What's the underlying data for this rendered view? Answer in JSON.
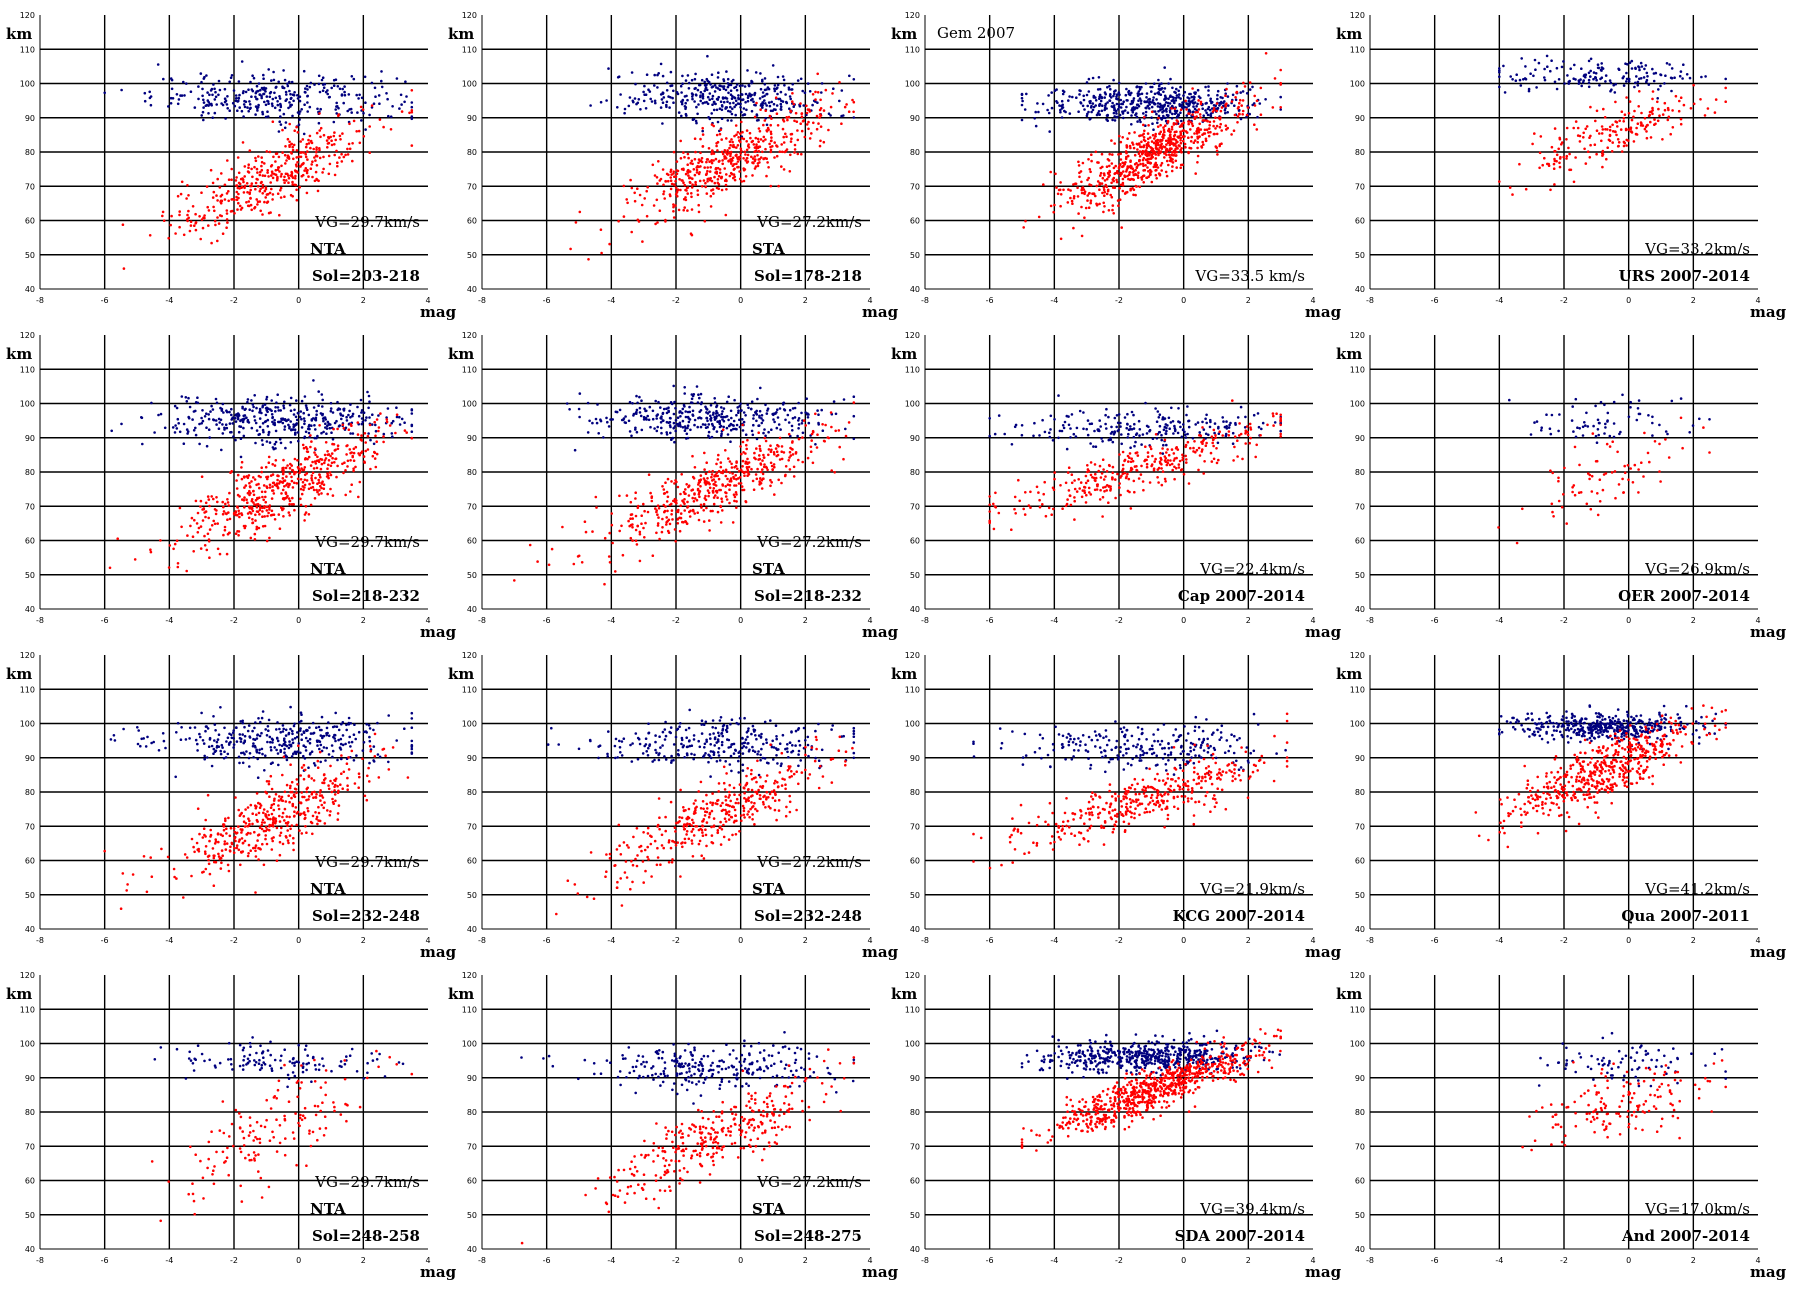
{
  "colors": {
    "upper": "#00007f",
    "lower": "#ff0000",
    "grid": "#000000"
  },
  "chart_data": [
    {
      "type": "scatter",
      "title": "",
      "ylabel": "km",
      "xlabel": "mag",
      "xlim": [
        -8,
        4
      ],
      "ylim": [
        40,
        120
      ],
      "annotations": [
        "VG=29.7km/s",
        "NTA",
        "Sol=203-218"
      ],
      "series": [
        {
          "name": "upper",
          "center": [
            -0.7,
            96
          ],
          "spread": [
            1.9,
            3.5
          ],
          "n": 330,
          "slope": 0,
          "xr": [
            -6,
            3.5
          ]
        },
        {
          "name": "lower",
          "center": [
            -0.8,
            73
          ],
          "spread": [
            1.6,
            5
          ],
          "n": 420,
          "slope": 4.5,
          "xr": [
            -6,
            3.5
          ]
        }
      ]
    },
    {
      "type": "scatter",
      "title": "",
      "ylabel": "km",
      "xlabel": "mag",
      "xlim": [
        -8,
        4
      ],
      "ylim": [
        40,
        120
      ],
      "annotations": [
        "VG=27.2km/s",
        "STA",
        "Sol=178-218"
      ],
      "series": [
        {
          "name": "upper",
          "center": [
            -0.4,
            96
          ],
          "spread": [
            1.8,
            3.5
          ],
          "n": 380,
          "slope": 0,
          "xr": [
            -6,
            3.5
          ]
        },
        {
          "name": "lower",
          "center": [
            -0.3,
            78
          ],
          "spread": [
            1.6,
            5
          ],
          "n": 520,
          "slope": 4.5,
          "xr": [
            -6,
            3.5
          ]
        }
      ]
    },
    {
      "type": "scatter",
      "title": "Gem 2007",
      "ylabel": "km",
      "xlabel": "mag",
      "xlim": [
        -8,
        4
      ],
      "ylim": [
        40,
        120
      ],
      "annotations": [
        "VG=33.5 km/s"
      ],
      "series": [
        {
          "name": "upper",
          "center": [
            -0.9,
            94
          ],
          "spread": [
            1.6,
            3
          ],
          "n": 520,
          "slope": 0,
          "xr": [
            -5,
            3
          ]
        },
        {
          "name": "lower",
          "center": [
            -0.9,
            80
          ],
          "spread": [
            1.4,
            4.5
          ],
          "n": 700,
          "slope": 5,
          "xr": [
            -5,
            3
          ]
        }
      ]
    },
    {
      "type": "scatter",
      "title": "",
      "ylabel": "km",
      "xlabel": "mag",
      "xlim": [
        -8,
        4
      ],
      "ylim": [
        40,
        120
      ],
      "annotations": [
        "VG=33.2km/s",
        "URS 2007-2014"
      ],
      "series": [
        {
          "name": "upper",
          "center": [
            -0.8,
            102
          ],
          "spread": [
            1.6,
            2.5
          ],
          "n": 160,
          "slope": 0,
          "xr": [
            -4,
            3
          ]
        },
        {
          "name": "lower",
          "center": [
            -0.5,
            86
          ],
          "spread": [
            1.4,
            4
          ],
          "n": 200,
          "slope": 3.5,
          "xr": [
            -4,
            3
          ]
        }
      ]
    },
    {
      "type": "scatter",
      "title": "",
      "ylabel": "km",
      "xlabel": "mag",
      "xlim": [
        -8,
        4
      ],
      "ylim": [
        40,
        120
      ],
      "annotations": [
        "VG=29.7km/s",
        "NTA",
        "Sol=218-232"
      ],
      "series": [
        {
          "name": "upper",
          "center": [
            -0.5,
            95
          ],
          "spread": [
            1.8,
            3.5
          ],
          "n": 400,
          "slope": 0,
          "xr": [
            -6,
            3.5
          ]
        },
        {
          "name": "lower",
          "center": [
            -0.6,
            75
          ],
          "spread": [
            1.6,
            5
          ],
          "n": 520,
          "slope": 4.5,
          "xr": [
            -6,
            3.5
          ]
        }
      ]
    },
    {
      "type": "scatter",
      "title": "",
      "ylabel": "km",
      "xlabel": "mag",
      "xlim": [
        -8,
        4
      ],
      "ylim": [
        40,
        120
      ],
      "annotations": [
        "VG=27.2km/s",
        "STA",
        "Sol=218-232"
      ],
      "series": [
        {
          "name": "upper",
          "center": [
            -0.8,
            96
          ],
          "spread": [
            1.8,
            3.2
          ],
          "n": 380,
          "slope": 0,
          "xr": [
            -6.5,
            3.5
          ]
        },
        {
          "name": "lower",
          "center": [
            -0.8,
            76
          ],
          "spread": [
            1.8,
            5
          ],
          "n": 480,
          "slope": 4.5,
          "xr": [
            -7,
            3.5
          ]
        }
      ]
    },
    {
      "type": "scatter",
      "title": "",
      "ylabel": "km",
      "xlabel": "mag",
      "xlim": [
        -8,
        4
      ],
      "ylim": [
        40,
        120
      ],
      "annotations": [
        "VG=22.4km/s",
        "Cap 2007-2014"
      ],
      "series": [
        {
          "name": "upper",
          "center": [
            -1.2,
            93
          ],
          "spread": [
            2,
            2.8
          ],
          "n": 230,
          "slope": 0,
          "xr": [
            -6,
            3
          ]
        },
        {
          "name": "lower",
          "center": [
            -1.3,
            81
          ],
          "spread": [
            2,
            3.5
          ],
          "n": 330,
          "slope": 3,
          "xr": [
            -6,
            3
          ]
        }
      ]
    },
    {
      "type": "scatter",
      "title": "",
      "ylabel": "km",
      "xlabel": "mag",
      "xlim": [
        -8,
        4
      ],
      "ylim": [
        40,
        120
      ],
      "annotations": [
        "VG=26.9km/s",
        "OER 2007-2014"
      ],
      "series": [
        {
          "name": "upper",
          "center": [
            -0.8,
            95
          ],
          "spread": [
            1.6,
            3.5
          ],
          "n": 70,
          "slope": 0,
          "xr": [
            -6.5,
            2.5
          ]
        },
        {
          "name": "lower",
          "center": [
            -0.6,
            79
          ],
          "spread": [
            1.6,
            5
          ],
          "n": 75,
          "slope": 3.5,
          "xr": [
            -6.5,
            2.5
          ]
        }
      ]
    },
    {
      "type": "scatter",
      "title": "",
      "ylabel": "km",
      "xlabel": "mag",
      "xlim": [
        -8,
        4
      ],
      "ylim": [
        40,
        120
      ],
      "annotations": [
        "VG=29.7km/s",
        "NTA",
        "Sol=232-248"
      ],
      "series": [
        {
          "name": "upper",
          "center": [
            -0.7,
            95
          ],
          "spread": [
            1.9,
            3.5
          ],
          "n": 360,
          "slope": 0,
          "xr": [
            -6,
            3.5
          ]
        },
        {
          "name": "lower",
          "center": [
            -0.8,
            73
          ],
          "spread": [
            1.6,
            5
          ],
          "n": 440,
          "slope": 4.5,
          "xr": [
            -6,
            3.5
          ]
        }
      ]
    },
    {
      "type": "scatter",
      "title": "",
      "ylabel": "km",
      "xlabel": "mag",
      "xlim": [
        -8,
        4
      ],
      "ylim": [
        40,
        120
      ],
      "annotations": [
        "VG=27.2km/s",
        "STA",
        "Sol=232-248"
      ],
      "series": [
        {
          "name": "upper",
          "center": [
            -0.6,
            94
          ],
          "spread": [
            1.9,
            3.5
          ],
          "n": 300,
          "slope": 0,
          "xr": [
            -7,
            3.5
          ]
        },
        {
          "name": "lower",
          "center": [
            -0.6,
            74
          ],
          "spread": [
            1.8,
            5
          ],
          "n": 380,
          "slope": 4.5,
          "xr": [
            -7,
            3.5
          ]
        }
      ]
    },
    {
      "type": "scatter",
      "title": "",
      "ylabel": "km",
      "xlabel": "mag",
      "xlim": [
        -8,
        4
      ],
      "ylim": [
        40,
        120
      ],
      "annotations": [
        "VG=21.9km/s",
        "KCG 2007-2014"
      ],
      "series": [
        {
          "name": "upper",
          "center": [
            -1.2,
            93
          ],
          "spread": [
            2,
            3.5
          ],
          "n": 250,
          "slope": 0,
          "xr": [
            -6.5,
            3.2
          ]
        },
        {
          "name": "lower",
          "center": [
            -1.2,
            78
          ],
          "spread": [
            2,
            4
          ],
          "n": 380,
          "slope": 3,
          "xr": [
            -6.5,
            3.2
          ]
        }
      ]
    },
    {
      "type": "scatter",
      "title": "",
      "ylabel": "km",
      "xlabel": "mag",
      "xlim": [
        -8,
        4
      ],
      "ylim": [
        40,
        120
      ],
      "annotations": [
        "VG=41.2km/s",
        "Qua 2007-2011"
      ],
      "series": [
        {
          "name": "upper",
          "center": [
            -0.7,
            99
          ],
          "spread": [
            1.4,
            2
          ],
          "n": 430,
          "slope": 0,
          "xr": [
            -4,
            3
          ]
        },
        {
          "name": "lower",
          "center": [
            -0.8,
            86
          ],
          "spread": [
            1.4,
            4
          ],
          "n": 520,
          "slope": 4,
          "xr": [
            -6,
            3
          ]
        }
      ]
    },
    {
      "type": "scatter",
      "title": "",
      "ylabel": "km",
      "xlabel": "mag",
      "xlim": [
        -8,
        4
      ],
      "ylim": [
        40,
        120
      ],
      "annotations": [
        "VG=29.7km/s",
        "NTA",
        "Sol=248-258"
      ],
      "series": [
        {
          "name": "upper",
          "center": [
            -0.6,
            95
          ],
          "spread": [
            1.7,
            3
          ],
          "n": 120,
          "slope": 0,
          "xr": [
            -6,
            3.5
          ]
        },
        {
          "name": "lower",
          "center": [
            -0.8,
            74
          ],
          "spread": [
            1.6,
            6
          ],
          "n": 150,
          "slope": 4.5,
          "xr": [
            -6,
            3.5
          ]
        }
      ]
    },
    {
      "type": "scatter",
      "title": "",
      "ylabel": "km",
      "xlabel": "mag",
      "xlim": [
        -8,
        4
      ],
      "ylim": [
        40,
        120
      ],
      "annotations": [
        "VG=27.2km/s",
        "STA",
        "Sol=248-275"
      ],
      "series": [
        {
          "name": "upper",
          "center": [
            -0.7,
            93
          ],
          "spread": [
            1.9,
            3.5
          ],
          "n": 260,
          "slope": 0,
          "xr": [
            -7,
            3.5
          ]
        },
        {
          "name": "lower",
          "center": [
            -0.8,
            73
          ],
          "spread": [
            1.8,
            5
          ],
          "n": 330,
          "slope": 4.5,
          "xr": [
            -7,
            3.5
          ]
        }
      ]
    },
    {
      "type": "scatter",
      "title": "",
      "ylabel": "km",
      "xlabel": "mag",
      "xlim": [
        -8,
        4
      ],
      "ylim": [
        40,
        120
      ],
      "annotations": [
        "VG=39.4km/s",
        "SDA 2007-2014"
      ],
      "series": [
        {
          "name": "upper",
          "center": [
            -1,
            96
          ],
          "spread": [
            1.6,
            2.3
          ],
          "n": 520,
          "slope": 0,
          "xr": [
            -5,
            3
          ]
        },
        {
          "name": "lower",
          "center": [
            -1,
            86
          ],
          "spread": [
            1.6,
            3
          ],
          "n": 720,
          "slope": 3.5,
          "xr": [
            -5,
            3
          ]
        }
      ]
    },
    {
      "type": "scatter",
      "title": "",
      "ylabel": "km",
      "xlabel": "mag",
      "xlim": [
        -8,
        4
      ],
      "ylim": [
        40,
        120
      ],
      "annotations": [
        "VG=17.0km/s",
        "And 2007-2014"
      ],
      "series": [
        {
          "name": "upper",
          "center": [
            -0.3,
            94
          ],
          "spread": [
            1.4,
            3.5
          ],
          "n": 80,
          "slope": 0,
          "xr": [
            -7,
            3
          ]
        },
        {
          "name": "lower",
          "center": [
            -0.3,
            82
          ],
          "spread": [
            1.4,
            5
          ],
          "n": 150,
          "slope": 2,
          "xr": [
            -7,
            3
          ]
        }
      ]
    }
  ]
}
